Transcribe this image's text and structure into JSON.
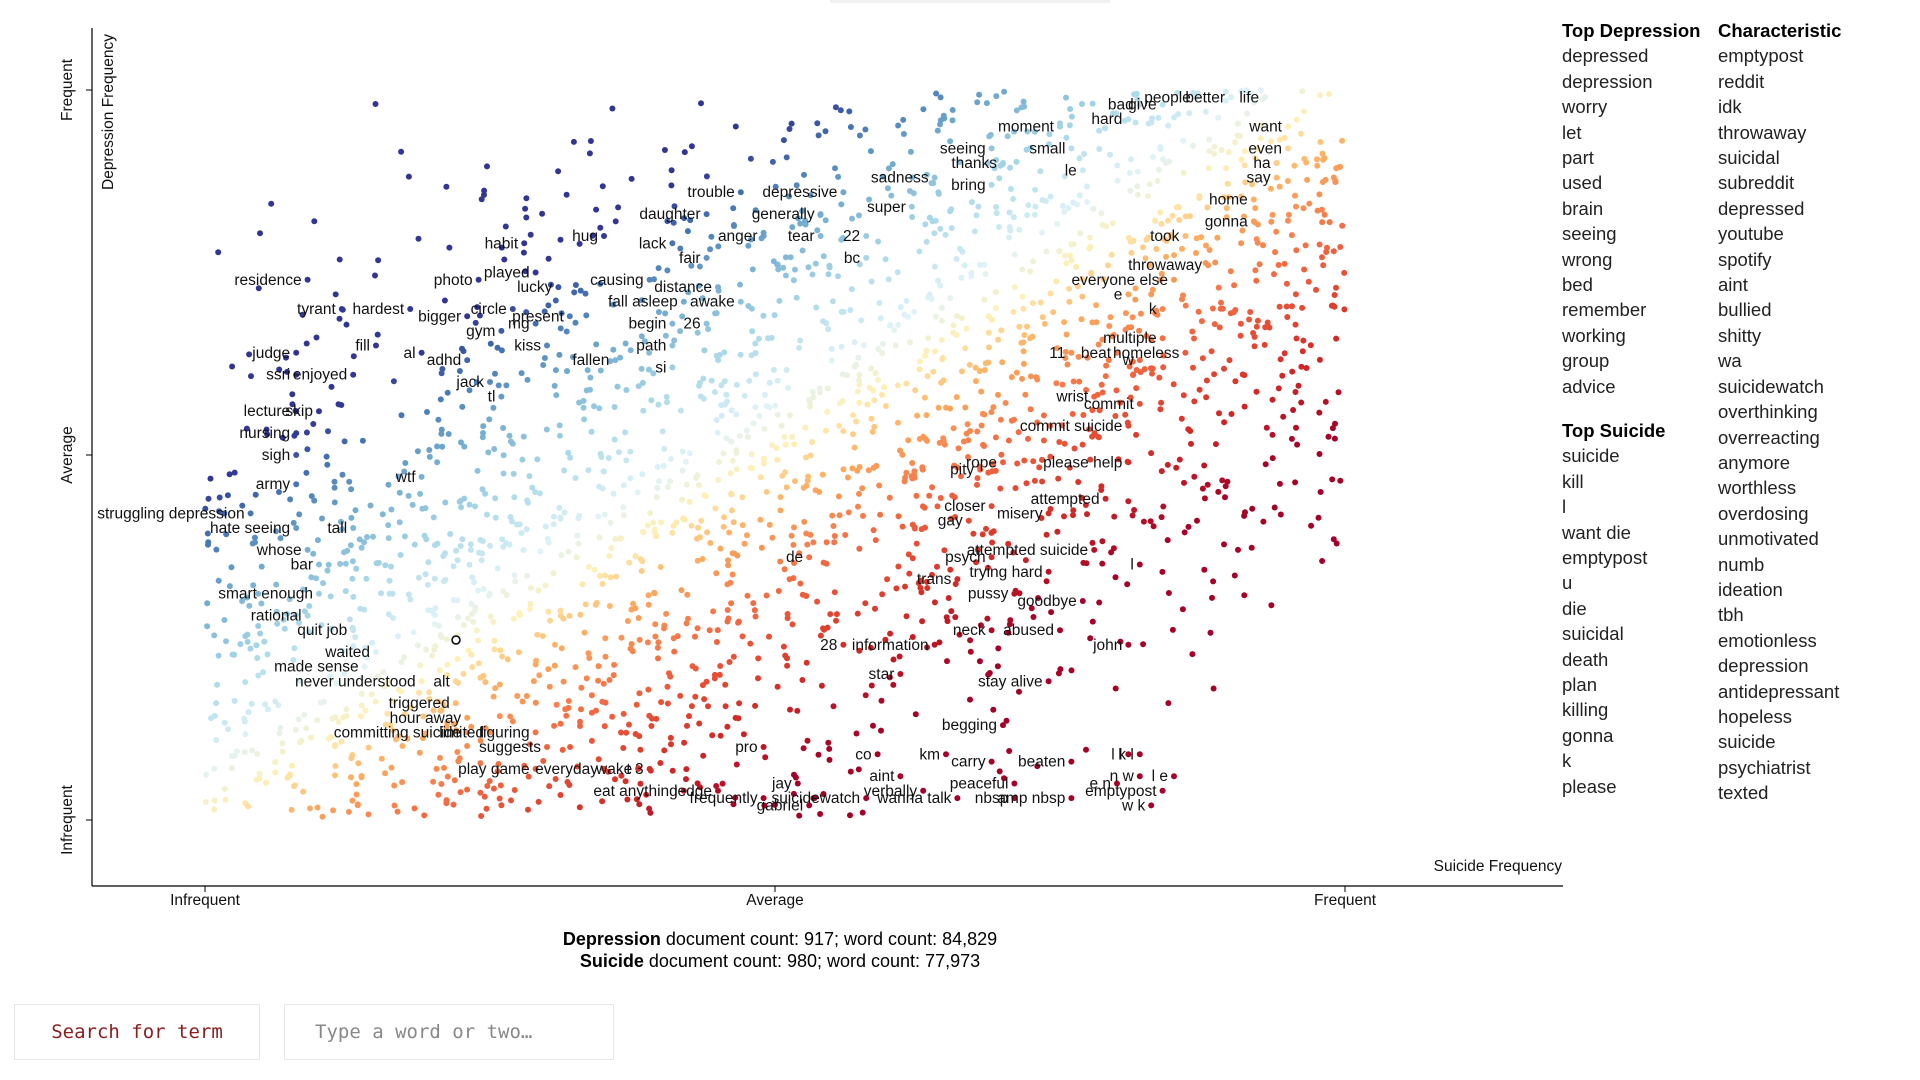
{
  "chart_data": {
    "type": "scatter",
    "x_axis": {
      "title": "Suicide Frequency",
      "ticks": [
        "Infrequent",
        "Average",
        "Frequent"
      ]
    },
    "y_axis": {
      "title": "Depression Frequency",
      "ticks": [
        "Infrequent",
        "Average",
        "Frequent"
      ]
    },
    "color_scale": {
      "low": "#a50026",
      "mid": "#ffffbf",
      "high": "#313695"
    },
    "labeled_points": [
      [
        "residence",
        0.09,
        0.74
      ],
      [
        "tyrant",
        0.12,
        0.7
      ],
      [
        "hardest",
        0.18,
        0.7
      ],
      [
        "judge",
        0.08,
        0.64
      ],
      [
        "ssri",
        0.08,
        0.61
      ],
      [
        "enjoyed",
        0.13,
        0.61
      ],
      [
        "fill",
        0.15,
        0.65
      ],
      [
        "al",
        0.19,
        0.64
      ],
      [
        "lecture",
        0.08,
        0.56
      ],
      [
        "skip",
        0.1,
        0.56
      ],
      [
        "nursing",
        0.08,
        0.53
      ],
      [
        "sigh",
        0.08,
        0.5
      ],
      [
        "army",
        0.08,
        0.46
      ],
      [
        "struggling depression",
        0.04,
        0.42
      ],
      [
        "hate seeing",
        0.08,
        0.4
      ],
      [
        "tall",
        0.13,
        0.4
      ],
      [
        "whose",
        0.09,
        0.37
      ],
      [
        "bar",
        0.1,
        0.35
      ],
      [
        "smart enough",
        0.1,
        0.31
      ],
      [
        "rational",
        0.09,
        0.28
      ],
      [
        "quit job",
        0.13,
        0.26
      ],
      [
        "waited",
        0.15,
        0.23
      ],
      [
        "made sense",
        0.14,
        0.21
      ],
      [
        "never understood",
        0.19,
        0.19
      ],
      [
        "alt",
        0.22,
        0.19
      ],
      [
        "triggered",
        0.22,
        0.16
      ],
      [
        "hour away",
        0.23,
        0.14
      ],
      [
        "committing suicide",
        0.23,
        0.12
      ],
      [
        "limited",
        0.25,
        0.12
      ],
      [
        "figuring",
        0.29,
        0.12
      ],
      [
        "suggests",
        0.3,
        0.1
      ],
      [
        "play game",
        0.29,
        0.07
      ],
      [
        "everyday",
        0.35,
        0.07
      ],
      [
        "wake",
        0.38,
        0.07
      ],
      [
        "t 3",
        0.39,
        0.07
      ],
      [
        "eat anything",
        0.42,
        0.04
      ],
      [
        "ledge",
        0.45,
        0.04
      ],
      [
        "frequently",
        0.49,
        0.03
      ],
      [
        "jay",
        0.52,
        0.05
      ],
      [
        "gabriel",
        0.53,
        0.02
      ],
      [
        "pro",
        0.49,
        0.1
      ],
      [
        "co",
        0.59,
        0.09
      ],
      [
        "km",
        0.65,
        0.09
      ],
      [
        "aint",
        0.61,
        0.06
      ],
      [
        "verbally",
        0.63,
        0.04
      ],
      [
        "wanna talk",
        0.66,
        0.03
      ],
      [
        "suicidewatch",
        0.58,
        0.03
      ],
      [
        "peaceful",
        0.71,
        0.05
      ],
      [
        "nbsp",
        0.71,
        0.03
      ],
      [
        "carry",
        0.69,
        0.08
      ],
      [
        "begging",
        0.7,
        0.13
      ],
      [
        "beaten",
        0.76,
        0.08
      ],
      [
        "amp nbsp",
        0.76,
        0.03
      ],
      [
        "emptypost",
        0.84,
        0.04
      ],
      [
        "e n",
        0.8,
        0.05
      ],
      [
        "n w",
        0.82,
        0.06
      ],
      [
        "w k",
        0.83,
        0.02
      ],
      [
        "l l",
        0.81,
        0.09
      ],
      [
        "k l",
        0.82,
        0.09
      ],
      [
        "l e",
        0.85,
        0.06
      ],
      [
        "stay alive",
        0.74,
        0.19
      ],
      [
        "neck",
        0.69,
        0.26
      ],
      [
        "information",
        0.64,
        0.24
      ],
      [
        "28",
        0.56,
        0.24
      ],
      [
        "star",
        0.61,
        0.2
      ],
      [
        "abused",
        0.75,
        0.26
      ],
      [
        "john",
        0.81,
        0.24
      ],
      [
        "goodbye",
        0.77,
        0.3
      ],
      [
        "pussy",
        0.71,
        0.31
      ],
      [
        "trans",
        0.66,
        0.33
      ],
      [
        "trying hard",
        0.74,
        0.34
      ],
      [
        "psych",
        0.69,
        0.36
      ],
      [
        "attempted suicide",
        0.78,
        0.37
      ],
      [
        "l",
        0.82,
        0.35
      ],
      [
        "de",
        0.53,
        0.36
      ],
      [
        "gay",
        0.67,
        0.41
      ],
      [
        "closer",
        0.69,
        0.43
      ],
      [
        "misery",
        0.74,
        0.42
      ],
      [
        "attempted",
        0.79,
        0.44
      ],
      [
        "pity",
        0.68,
        0.48
      ],
      [
        "rope",
        0.7,
        0.49
      ],
      [
        "please help",
        0.81,
        0.49
      ],
      [
        "commit suicide",
        0.81,
        0.54
      ],
      [
        "commit",
        0.82,
        0.57
      ],
      [
        "wrist",
        0.78,
        0.58
      ],
      [
        "11",
        0.76,
        0.64
      ],
      [
        "beat",
        0.8,
        0.64
      ],
      [
        "w",
        0.82,
        0.63
      ],
      [
        "homeless",
        0.86,
        0.64
      ],
      [
        "multiple",
        0.84,
        0.66
      ],
      [
        "k",
        0.84,
        0.7
      ],
      [
        "e",
        0.81,
        0.72
      ],
      [
        "everyone else",
        0.85,
        0.74
      ],
      [
        "throwaway",
        0.88,
        0.76
      ],
      [
        "took",
        0.86,
        0.8
      ],
      [
        "gonna",
        0.92,
        0.82
      ],
      [
        "home",
        0.92,
        0.85
      ],
      [
        "say",
        0.94,
        0.88
      ],
      [
        "ha",
        0.94,
        0.9
      ],
      [
        "even",
        0.95,
        0.92
      ],
      [
        "want",
        0.95,
        0.95
      ],
      [
        "life",
        0.93,
        0.99
      ],
      [
        "better",
        0.9,
        0.99
      ],
      [
        "people",
        0.87,
        0.99
      ],
      [
        "give",
        0.84,
        0.98
      ],
      [
        "bad",
        0.82,
        0.98
      ],
      [
        "hard",
        0.81,
        0.96
      ],
      [
        "le",
        0.77,
        0.89
      ],
      [
        "moment",
        0.75,
        0.95
      ],
      [
        "small",
        0.76,
        0.92
      ],
      [
        "seeing",
        0.69,
        0.92
      ],
      [
        "thanks",
        0.7,
        0.9
      ],
      [
        "bring",
        0.69,
        0.87
      ],
      [
        "sadness",
        0.64,
        0.88
      ],
      [
        "super",
        0.62,
        0.84
      ],
      [
        "depressive",
        0.56,
        0.86
      ],
      [
        "generally",
        0.54,
        0.83
      ],
      [
        "22",
        0.58,
        0.8
      ],
      [
        "tear",
        0.54,
        0.8
      ],
      [
        "bc",
        0.58,
        0.77
      ],
      [
        "anger",
        0.49,
        0.8
      ],
      [
        "trouble",
        0.47,
        0.86
      ],
      [
        "daughter",
        0.44,
        0.83
      ],
      [
        "lack",
        0.41,
        0.79
      ],
      [
        "fair",
        0.44,
        0.77
      ],
      [
        "hug",
        0.35,
        0.8
      ],
      [
        "causing",
        0.39,
        0.74
      ],
      [
        "distance",
        0.45,
        0.73
      ],
      [
        "awake",
        0.47,
        0.71
      ],
      [
        "fall asleep",
        0.42,
        0.71
      ],
      [
        "begin",
        0.41,
        0.68
      ],
      [
        "26",
        0.44,
        0.68
      ],
      [
        "path",
        0.41,
        0.65
      ],
      [
        "fallen",
        0.36,
        0.63
      ],
      [
        "si",
        0.41,
        0.62
      ],
      [
        "habit",
        0.28,
        0.79
      ],
      [
        "played",
        0.29,
        0.75
      ],
      [
        "lucky",
        0.31,
        0.73
      ],
      [
        "photo",
        0.24,
        0.74
      ],
      [
        "bigger",
        0.23,
        0.69
      ],
      [
        "circle",
        0.27,
        0.7
      ],
      [
        "gym",
        0.26,
        0.67
      ],
      [
        "mg",
        0.29,
        0.68
      ],
      [
        "present",
        0.32,
        0.69
      ],
      [
        "kiss",
        0.3,
        0.65
      ],
      [
        "adhd",
        0.23,
        0.63
      ],
      [
        "jack",
        0.25,
        0.6
      ],
      [
        "tl",
        0.26,
        0.58
      ],
      [
        "wtf",
        0.19,
        0.47
      ]
    ],
    "legend": "none"
  },
  "doc_counts": {
    "depression": {
      "name": "Depression",
      "text": " document count: 917; word count: 84,829"
    },
    "suicide": {
      "name": "Suicide",
      "text": " document count: 980; word count: 77,973"
    }
  },
  "top_depression": {
    "title": "Top Depression",
    "items": [
      "depressed",
      "depression",
      "worry",
      "let",
      "part",
      "used",
      "brain",
      "seeing",
      "wrong",
      "bed",
      "remember",
      "working",
      "group",
      "advice"
    ]
  },
  "top_suicide": {
    "title": "Top Suicide",
    "items": [
      "suicide",
      "kill",
      "l",
      "want die",
      "emptypost",
      "u",
      "die",
      "suicidal",
      "death",
      "plan",
      "killing",
      "gonna",
      "k",
      "please"
    ]
  },
  "characteristic": {
    "title": "Characteristic",
    "items": [
      "emptypost",
      "reddit",
      "idk",
      "throwaway",
      "suicidal",
      "subreddit",
      "depressed",
      "youtube",
      "spotify",
      "aint",
      "bullied",
      "shitty",
      "wa",
      "suicidewatch",
      "overthinking",
      "overreacting",
      "anymore",
      "worthless",
      "overdosing",
      "unmotivated",
      "numb",
      "ideation",
      "tbh",
      "emotionless",
      "depression",
      "antidepressant",
      "hopeless",
      "suicide",
      "psychiatrist",
      "texted"
    ]
  },
  "search": {
    "button_label": "Search for term",
    "placeholder": "Type a word or two…"
  }
}
